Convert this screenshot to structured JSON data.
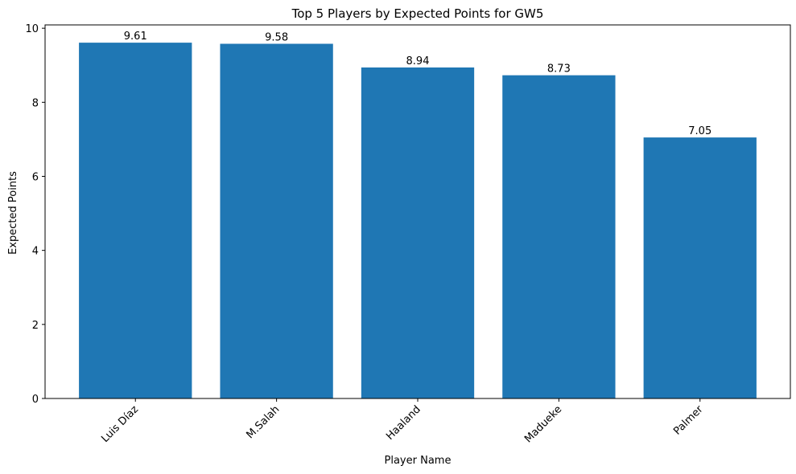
{
  "chart_data": {
    "type": "bar",
    "title": "Top 5 Players by Expected Points for GW5",
    "x_label": "Player Name",
    "y_label": "Expected Points",
    "categories": [
      "Luis Díaz",
      "M.Salah",
      "Haaland",
      "Madueke",
      "Palmer"
    ],
    "values": [
      9.61,
      9.58,
      8.94,
      8.73,
      7.05
    ],
    "color": "#1f77b4",
    "ylim": [
      0,
      10.09
    ],
    "yticks": [
      0,
      2,
      4,
      6,
      8,
      10
    ],
    "grid": false
  }
}
